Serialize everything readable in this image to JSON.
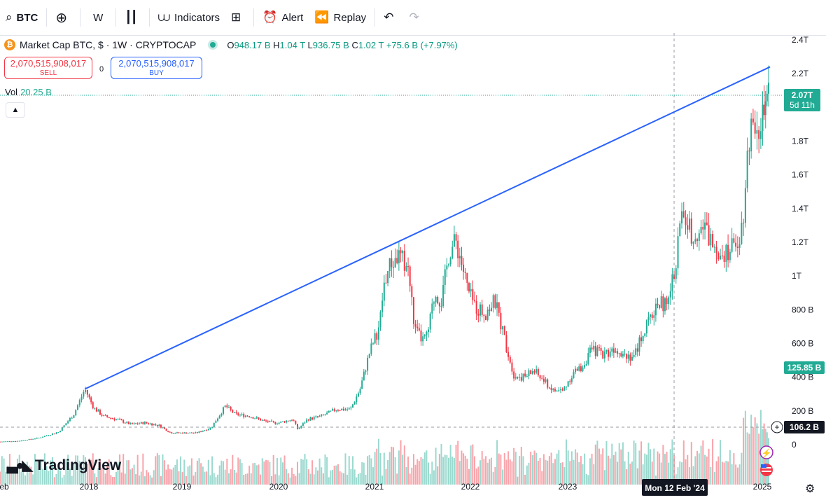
{
  "toolbar": {
    "symbol": "BTC",
    "add_icon": "plus-circle-icon",
    "interval": "W",
    "chart_type_icon": "candles-icon",
    "indicators_label": "Indicators",
    "layouts_icon": "grid-icon",
    "alert_label": "Alert",
    "replay_label": "Replay",
    "undo_icon": "undo-icon",
    "redo_icon": "redo-icon"
  },
  "legend": {
    "coin_glyph": "₿",
    "title": "Market Cap BTC, $ · 1W · CRYPTOCAP",
    "o_label": "O",
    "o_value": "948.17 B",
    "h_label": "H",
    "h_value": "1.04 T",
    "l_label": "L",
    "l_value": "936.75 B",
    "c_label": "C",
    "c_value": "1.02 T",
    "change": "+75.6 B (+7.97%)"
  },
  "trade": {
    "sell_price": "2,070,515,908,017",
    "sell_label": "SELL",
    "spread": "0",
    "buy_price": "2,070,515,908,017",
    "buy_label": "BUY"
  },
  "volume": {
    "label": "Vol",
    "value": "20.25 B"
  },
  "brand": "TradingView",
  "price_badge": {
    "value": "2.07T",
    "countdown": "5d 11h"
  },
  "volume_badge": "125.85 B",
  "crosshair_badge": "106.2 B",
  "crosshair_date": "Mon 12 Feb '24",
  "colors": {
    "up": "#22ab94",
    "down": "#f23645",
    "trend": "#2962ff"
  },
  "chart_data": {
    "type": "candlestick",
    "interval": "1W",
    "y_unit": "USD",
    "y_ticks": [
      "2.4T",
      "2.2T",
      "1.8T",
      "1.6T",
      "1.4T",
      "1.2T",
      "1T",
      "800 B",
      "600 B",
      "400 B",
      "200 B",
      "0"
    ],
    "y_tick_values": [
      2400,
      2200,
      1800,
      1600,
      1400,
      1200,
      1000,
      800,
      600,
      400,
      200,
      0
    ],
    "x_ticks": [
      "eb",
      "2018",
      "2019",
      "2020",
      "2021",
      "2022",
      "2023",
      "2025"
    ],
    "x_tick_years": [
      2017.12,
      2018,
      2019,
      2020,
      2021,
      2022,
      2023,
      2025
    ],
    "x_range": [
      2017.12,
      2025.1
    ],
    "y_range": [
      0,
      2400
    ],
    "price_path_billions": [
      [
        2017.12,
        18
      ],
      [
        2017.3,
        22
      ],
      [
        2017.5,
        40
      ],
      [
        2017.7,
        75
      ],
      [
        2017.85,
        180
      ],
      [
        2017.96,
        330
      ],
      [
        2018.05,
        220
      ],
      [
        2018.15,
        170
      ],
      [
        2018.3,
        150
      ],
      [
        2018.45,
        120
      ],
      [
        2018.6,
        130
      ],
      [
        2018.75,
        115
      ],
      [
        2018.88,
        70
      ],
      [
        2019.0,
        70
      ],
      [
        2019.15,
        70
      ],
      [
        2019.3,
        100
      ],
      [
        2019.45,
        230
      ],
      [
        2019.55,
        180
      ],
      [
        2019.7,
        170
      ],
      [
        2019.85,
        140
      ],
      [
        2019.95,
        130
      ],
      [
        2020.0,
        130
      ],
      [
        2020.15,
        150
      ],
      [
        2020.2,
        90
      ],
      [
        2020.3,
        150
      ],
      [
        2020.45,
        170
      ],
      [
        2020.6,
        210
      ],
      [
        2020.75,
        210
      ],
      [
        2020.85,
        330
      ],
      [
        2020.95,
        550
      ],
      [
        2021.05,
        700
      ],
      [
        2021.1,
        950
      ],
      [
        2021.15,
        1050
      ],
      [
        2021.25,
        1120
      ],
      [
        2021.35,
        1050
      ],
      [
        2021.42,
        680
      ],
      [
        2021.5,
        620
      ],
      [
        2021.55,
        640
      ],
      [
        2021.63,
        900
      ],
      [
        2021.7,
        850
      ],
      [
        2021.78,
        1150
      ],
      [
        2021.85,
        1200
      ],
      [
        2021.9,
        1100
      ],
      [
        2021.98,
        900
      ],
      [
        2022.05,
        820
      ],
      [
        2022.15,
        780
      ],
      [
        2022.25,
        850
      ],
      [
        2022.3,
        750
      ],
      [
        2022.38,
        560
      ],
      [
        2022.45,
        410
      ],
      [
        2022.55,
        400
      ],
      [
        2022.65,
        440
      ],
      [
        2022.75,
        380
      ],
      [
        2022.85,
        320
      ],
      [
        2022.95,
        320
      ],
      [
        2023.05,
        420
      ],
      [
        2023.15,
        460
      ],
      [
        2023.25,
        560
      ],
      [
        2023.4,
        540
      ],
      [
        2023.5,
        580
      ],
      [
        2023.6,
        540
      ],
      [
        2023.7,
        520
      ],
      [
        2023.78,
        650
      ],
      [
        2023.85,
        720
      ],
      [
        2023.95,
        850
      ],
      [
        2024.05,
        820
      ],
      [
        2024.12,
        1020
      ],
      [
        2024.2,
        1380
      ],
      [
        2024.3,
        1250
      ],
      [
        2024.4,
        1300
      ],
      [
        2024.5,
        1200
      ],
      [
        2024.6,
        1150
      ],
      [
        2024.7,
        1160
      ],
      [
        2024.8,
        1300
      ],
      [
        2024.87,
        1850
      ],
      [
        2024.93,
        1950
      ],
      [
        2024.98,
        1900
      ],
      [
        2025.05,
        1980
      ],
      [
        2025.1,
        2070
      ]
    ],
    "trendline": {
      "from": [
        2017.96,
        330
      ],
      "to": [
        2025.1,
        2240
      ]
    },
    "crosshair": {
      "date": "Mon 12 Feb '24",
      "value": "106.2 B"
    },
    "last_price": "2.07T"
  }
}
